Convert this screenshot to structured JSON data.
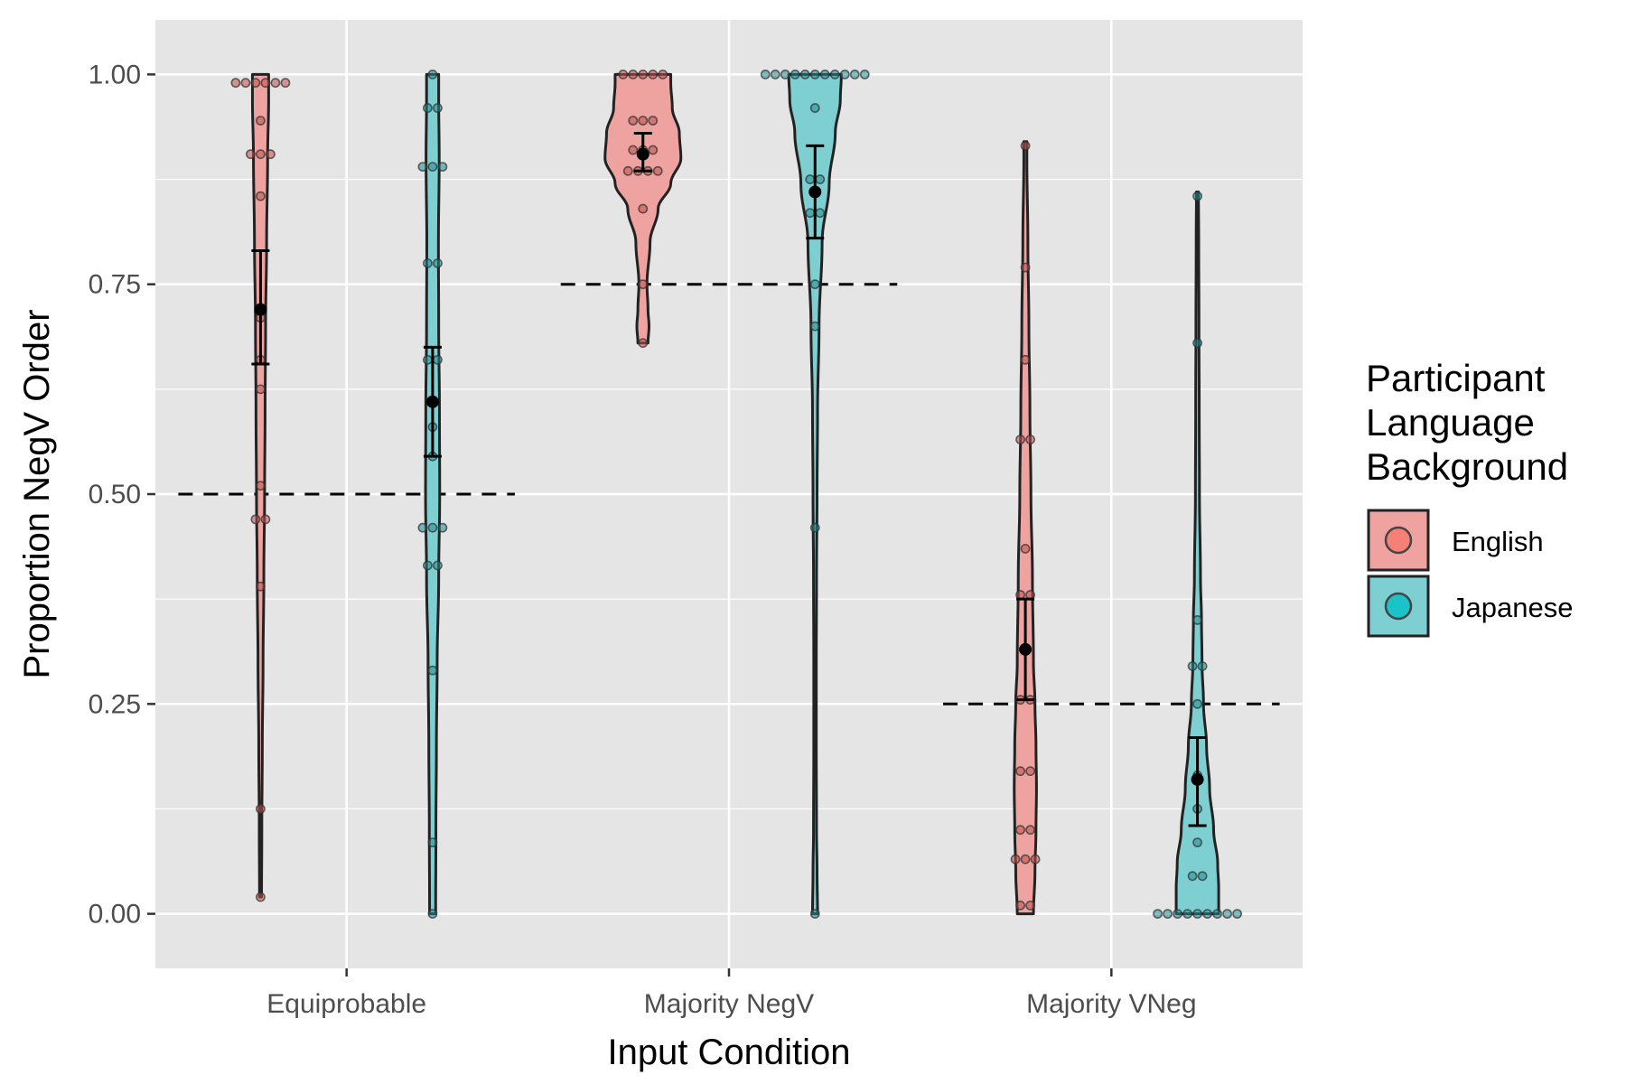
{
  "chart_data": {
    "type": "violin",
    "xlabel": "Input Condition",
    "ylabel": "Proportion NegV Order",
    "ylim": [
      -0.065,
      1.065
    ],
    "y_ticks": [
      0.0,
      0.25,
      0.5,
      0.75,
      1.0
    ],
    "y_tick_labels": [
      "0.00",
      "0.25",
      "0.50",
      "0.75",
      "1.00"
    ],
    "categories": [
      "Equiprobable",
      "Majority NegV",
      "Majority VNeg"
    ],
    "grid": true,
    "legend": {
      "title_lines": [
        "Participant",
        "Language",
        "Background"
      ],
      "placement": "right",
      "entries": [
        {
          "label": "English",
          "fill": "#EFA3A1",
          "point": "#F8766D"
        },
        {
          "label": "Japanese",
          "fill": "#7ECFD1",
          "point": "#00BFC4"
        }
      ]
    },
    "colors": {
      "panel": "#E5E5E5",
      "grid": "#FFFFFF",
      "outline": "#222222",
      "english_fill": "#EFA3A1",
      "japanese_fill": "#7ECFD1",
      "english_point": "#C0504D",
      "japanese_point": "#1F8C8F"
    },
    "reference_lines": [
      {
        "category": "Equiprobable",
        "y": 0.5
      },
      {
        "category": "Majority NegV",
        "y": 0.75
      },
      {
        "category": "Majority VNeg",
        "y": 0.25
      }
    ],
    "series": [
      {
        "name": "English",
        "groups": [
          {
            "category": "Equiprobable",
            "mean": 0.72,
            "ci": [
              0.655,
              0.79
            ],
            "density": [
              [
                0.02,
                2
              ],
              [
                0.1,
                2.5
              ],
              [
                0.2,
                3.5
              ],
              [
                0.3,
                5
              ],
              [
                0.4,
                6.5
              ],
              [
                0.5,
                8
              ],
              [
                0.6,
                9
              ],
              [
                0.7,
                10
              ],
              [
                0.8,
                12
              ],
              [
                0.9,
                14
              ],
              [
                0.97,
                16
              ],
              [
                1.0,
                16
              ]
            ],
            "points": [
              0.02,
              0.125,
              0.39,
              0.47,
              0.47,
              0.51,
              0.625,
              0.66,
              0.71,
              0.855,
              0.905,
              0.905,
              0.905,
              0.945,
              0.99,
              0.99,
              0.99,
              0.99,
              0.99,
              0.99
            ]
          },
          {
            "category": "Majority NegV",
            "mean": 0.905,
            "ci": [
              0.885,
              0.93
            ],
            "density": [
              [
                0.68,
                10
              ],
              [
                0.7,
                12
              ],
              [
                0.72,
                10
              ],
              [
                0.75,
                8
              ],
              [
                0.8,
                14
              ],
              [
                0.84,
                30
              ],
              [
                0.87,
                55
              ],
              [
                0.9,
                75
              ],
              [
                0.93,
                72
              ],
              [
                0.96,
                58
              ],
              [
                0.99,
                55
              ],
              [
                1.0,
                55
              ]
            ],
            "points": [
              0.68,
              0.75,
              0.84,
              0.885,
              0.885,
              0.885,
              0.885,
              0.91,
              0.91,
              0.91,
              0.945,
              0.945,
              0.945,
              1.0,
              1.0,
              1.0,
              1.0,
              1.0
            ]
          },
          {
            "category": "Majority VNeg",
            "mean": 0.315,
            "ci": [
              0.255,
              0.375
            ],
            "density": [
              [
                0.0,
                16
              ],
              [
                0.05,
                19
              ],
              [
                0.1,
                21
              ],
              [
                0.15,
                22
              ],
              [
                0.2,
                21
              ],
              [
                0.25,
                19
              ],
              [
                0.3,
                16
              ],
              [
                0.4,
                14
              ],
              [
                0.5,
                11
              ],
              [
                0.6,
                9
              ],
              [
                0.7,
                7
              ],
              [
                0.8,
                5
              ],
              [
                0.9,
                3
              ],
              [
                0.92,
                3
              ]
            ],
            "points": [
              0.01,
              0.01,
              0.065,
              0.065,
              0.065,
              0.1,
              0.1,
              0.17,
              0.17,
              0.255,
              0.255,
              0.38,
              0.38,
              0.435,
              0.565,
              0.565,
              0.66,
              0.77,
              0.915
            ]
          }
        ]
      },
      {
        "name": "Japanese",
        "groups": [
          {
            "category": "Equiprobable",
            "mean": 0.61,
            "ci": [
              0.545,
              0.675
            ],
            "density": [
              [
                0.0,
                6
              ],
              [
                0.1,
                6.5
              ],
              [
                0.2,
                7.5
              ],
              [
                0.3,
                9
              ],
              [
                0.4,
                12
              ],
              [
                0.5,
                14
              ],
              [
                0.6,
                13.5
              ],
              [
                0.7,
                12
              ],
              [
                0.8,
                11.5
              ],
              [
                0.9,
                13
              ],
              [
                0.97,
                12
              ],
              [
                1.0,
                12
              ]
            ],
            "points": [
              0.0,
              0.085,
              0.29,
              0.415,
              0.415,
              0.46,
              0.46,
              0.46,
              0.545,
              0.58,
              0.66,
              0.66,
              0.775,
              0.775,
              0.89,
              0.89,
              0.89,
              0.96,
              0.96,
              1.0
            ]
          },
          {
            "category": "Majority NegV",
            "mean": 0.86,
            "ci": [
              0.805,
              0.915
            ],
            "density": [
              [
                0.0,
                5
              ],
              [
                0.05,
                4
              ],
              [
                0.1,
                3
              ],
              [
                0.2,
                2.5
              ],
              [
                0.3,
                2.5
              ],
              [
                0.4,
                3
              ],
              [
                0.5,
                4
              ],
              [
                0.6,
                5
              ],
              [
                0.7,
                8
              ],
              [
                0.8,
                14
              ],
              [
                0.87,
                28
              ],
              [
                0.93,
                40
              ],
              [
                0.97,
                50
              ],
              [
                1.0,
                52
              ]
            ],
            "points": [
              0.0,
              0.46,
              0.7,
              0.75,
              0.835,
              0.835,
              0.875,
              0.875,
              0.96,
              1.0,
              1.0,
              1.0,
              1.0,
              1.0,
              1.0,
              1.0,
              1.0,
              1.0,
              1.0,
              1.0
            ]
          },
          {
            "category": "Majority VNeg",
            "mean": 0.16,
            "ci": [
              0.105,
              0.21
            ],
            "density": [
              [
                0.0,
                42
              ],
              [
                0.03,
                42
              ],
              [
                0.06,
                40
              ],
              [
                0.1,
                32
              ],
              [
                0.15,
                24
              ],
              [
                0.2,
                18
              ],
              [
                0.25,
                12
              ],
              [
                0.3,
                9
              ],
              [
                0.35,
                8
              ],
              [
                0.4,
                6
              ],
              [
                0.5,
                4
              ],
              [
                0.6,
                3.5
              ],
              [
                0.7,
                3
              ],
              [
                0.8,
                2.5
              ],
              [
                0.86,
                2
              ]
            ],
            "points": [
              0.0,
              0.0,
              0.0,
              0.0,
              0.0,
              0.0,
              0.0,
              0.0,
              0.0,
              0.045,
              0.045,
              0.085,
              0.125,
              0.165,
              0.25,
              0.295,
              0.295,
              0.35,
              0.68,
              0.855
            ]
          }
        ]
      }
    ]
  }
}
